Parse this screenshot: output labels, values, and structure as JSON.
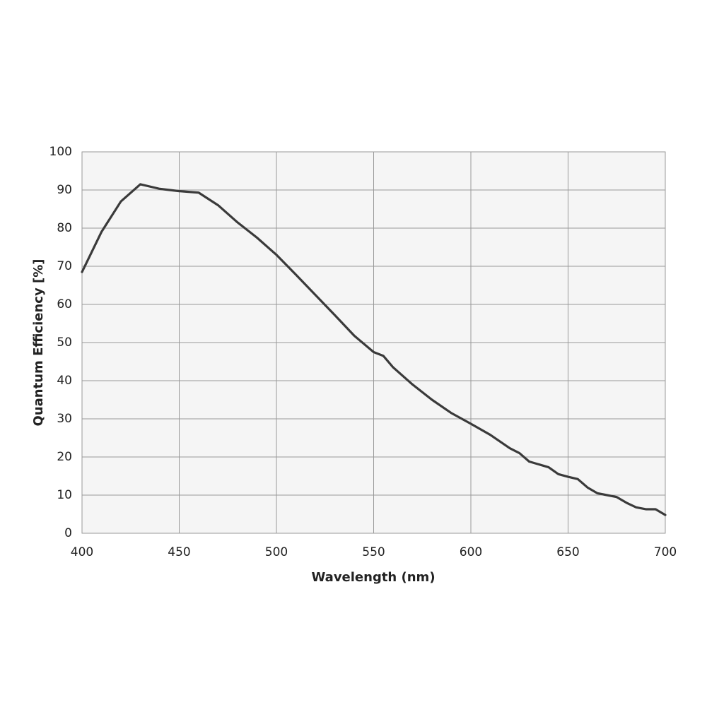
{
  "chart_data": {
    "type": "line",
    "x_label": "Wavelength (nm)",
    "y_label": "Quantum Efficiency [%]",
    "x": [
      400,
      410,
      420,
      430,
      440,
      450,
      460,
      470,
      480,
      490,
      500,
      510,
      520,
      530,
      540,
      550,
      555,
      560,
      570,
      580,
      590,
      600,
      610,
      620,
      625,
      630,
      640,
      645,
      650,
      655,
      660,
      665,
      670,
      675,
      680,
      685,
      690,
      695,
      700
    ],
    "values": [
      68.5,
      79,
      87,
      91.5,
      90.3,
      89.7,
      89.3,
      86,
      81.5,
      77.5,
      73,
      67.8,
      62.5,
      57.2,
      51.8,
      47.5,
      46.5,
      43.5,
      39,
      35,
      31.5,
      28.7,
      25.8,
      22.3,
      21,
      18.8,
      17.3,
      15.5,
      14.8,
      14.2,
      12,
      10.5,
      10,
      9.5,
      8,
      6.8,
      6.3,
      6.3,
      4.8
    ],
    "color": "#3a3a3a",
    "xlim": [
      400,
      700
    ],
    "xticks": [
      400,
      450,
      500,
      550,
      600,
      650,
      700
    ],
    "ylim": [
      0,
      100
    ],
    "yticks": [
      0,
      10,
      20,
      30,
      40,
      50,
      60,
      70,
      80,
      90,
      100
    ],
    "grid": true
  }
}
